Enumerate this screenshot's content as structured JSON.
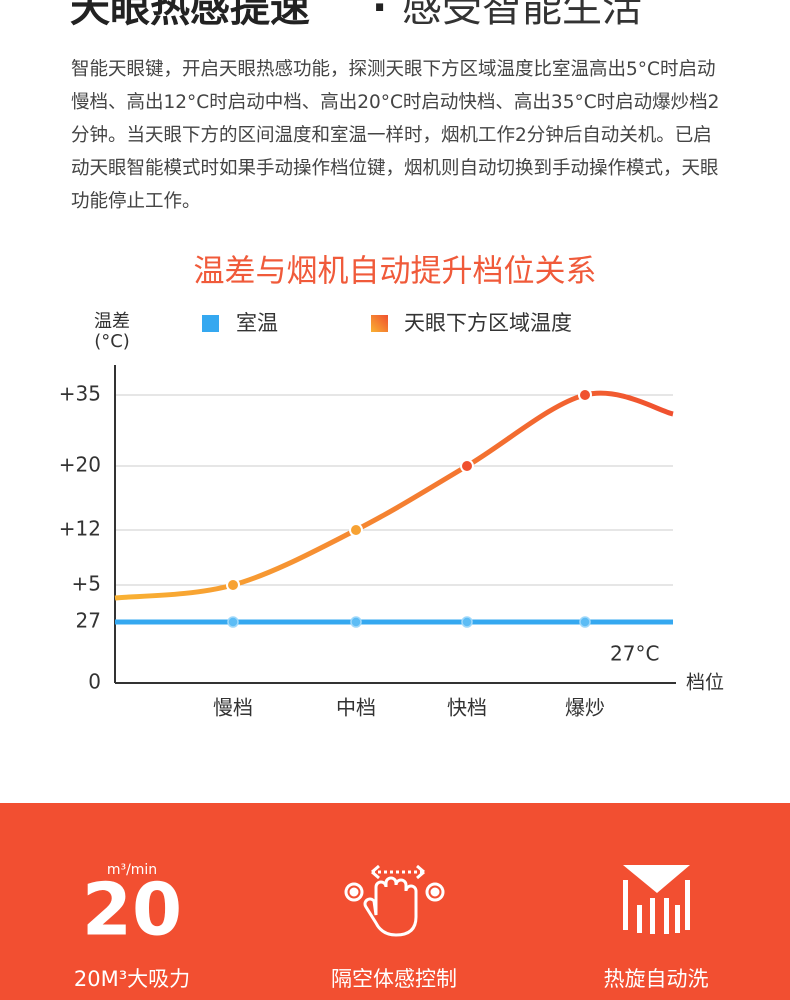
{
  "header": {
    "title_bold": "天眼热感提速",
    "separator": "·",
    "title_light": "感受智能生活"
  },
  "description": "智能天眼键，开启天眼热感功能，探测天眼下方区域温度比室温高出5°C时启动慢档、高出12°C时启动中档、高出20°C时启动快档、高出35°C时启动爆炒档2分钟。当天眼下方的区间温度和室温一样时，烟机工作2分钟后自动关机。已启动天眼智能模式时如果手动操作档位键，烟机则自动切换到手动操作模式，天眼功能停止工作。",
  "chart_data": {
    "type": "line",
    "title": "温差与烟机自动提升档位关系",
    "ylabel": "温差",
    "yunit": "(°C)",
    "xlabel": "档位",
    "categories": [
      "慢档",
      "中档",
      "快档",
      "爆炒"
    ],
    "series": [
      {
        "name": "室温",
        "color": "#35a8f0",
        "values": [
          27,
          27,
          27,
          27
        ]
      },
      {
        "name": "天眼下方区域温度",
        "color": "#f0502f",
        "color_start": "#f9b233",
        "values": [
          5,
          12,
          20,
          35
        ]
      }
    ],
    "ylim": [
      0,
      35
    ],
    "yticks": [
      0,
      27,
      {
        "value": 5,
        "label": "+5"
      },
      {
        "value": 12,
        "label": "+12"
      },
      {
        "value": 20,
        "label": "+20"
      },
      {
        "value": 35,
        "label": "+35"
      }
    ],
    "annotation": "27°C",
    "grid": true
  },
  "features": [
    {
      "unit": "m³/min",
      "value": 20,
      "label": "20M³大吸力"
    },
    {
      "label": "隔空体感控制"
    },
    {
      "label": "热旋自动洗"
    }
  ]
}
